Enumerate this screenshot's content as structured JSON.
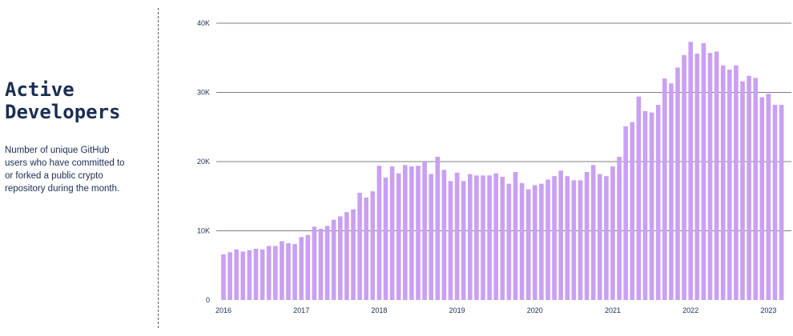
{
  "panel": {
    "title": "Active\nDevelopers",
    "description": "Number of unique GitHub users who have committed to or forked a public crypto repository during the month."
  },
  "colors": {
    "bar": "#c9a0f2",
    "grid": "#555555",
    "text": "#1a2e54"
  },
  "chart_data": {
    "type": "bar",
    "title": "",
    "xlabel": "",
    "ylabel": "",
    "ylim": [
      0,
      40000
    ],
    "yticks": [
      0,
      10000,
      20000,
      30000,
      40000
    ],
    "ytick_labels": [
      "0",
      "10K",
      "20K",
      "30K",
      "40K"
    ],
    "xtick_labels": [
      "2016",
      "2017",
      "2018",
      "2019",
      "2020",
      "2021",
      "2022",
      "2023"
    ],
    "xtick_indices": [
      0,
      12,
      24,
      36,
      48,
      60,
      72,
      84
    ],
    "grid": true,
    "x_start": "2016-01",
    "x_frequency": "monthly",
    "values": [
      6600,
      6900,
      7300,
      7000,
      7200,
      7400,
      7300,
      7800,
      7800,
      8500,
      8200,
      8100,
      9100,
      9400,
      10600,
      10300,
      10700,
      11600,
      12100,
      12700,
      13100,
      15500,
      14800,
      15700,
      19400,
      17700,
      19300,
      18300,
      19500,
      19300,
      19400,
      20000,
      18200,
      20700,
      18800,
      17200,
      18400,
      17200,
      18200,
      18000,
      18000,
      18000,
      18300,
      17800,
      16800,
      18500,
      16900,
      16000,
      16600,
      16800,
      17400,
      17900,
      18700,
      17900,
      17300,
      17300,
      18500,
      19500,
      18200,
      17900,
      19300,
      20700,
      25100,
      25700,
      29400,
      27300,
      27100,
      28200,
      32000,
      31300,
      33600,
      35400,
      37300,
      35600,
      37100,
      35700,
      35900,
      33900,
      33300,
      33900,
      31600,
      32400,
      32100,
      29300,
      29800,
      28200,
      28200
    ]
  }
}
